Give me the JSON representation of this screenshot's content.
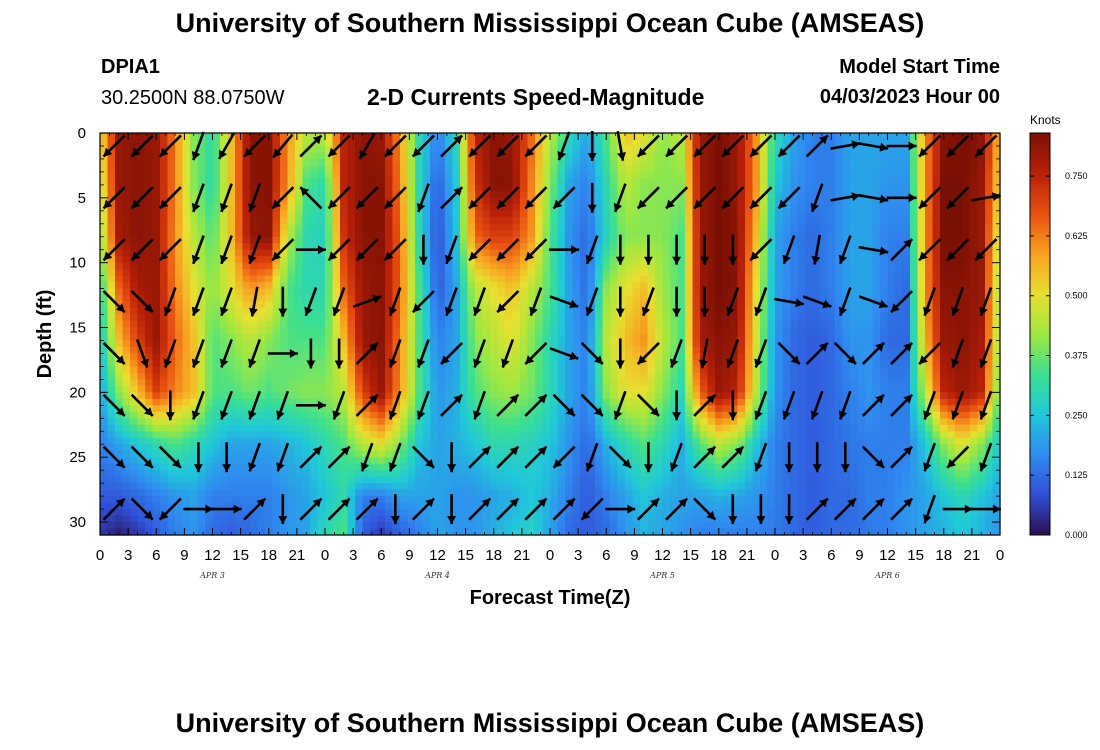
{
  "header": {
    "title_top": "University of Southern Mississippi Ocean Cube (AMSEAS)",
    "title_bottom": "University of Southern Mississippi Ocean Cube (AMSEAS)",
    "station_id": "DPIA1",
    "location": "30.2500N  88.0750W",
    "center_title": "2-D Currents Speed-Magnitude",
    "model_label": "Model Start Time",
    "model_time": "04/03/2023 Hour 00"
  },
  "colors": {
    "colormap": [
      "#2b0f50",
      "#3050d8",
      "#2f8cf0",
      "#20c8d8",
      "#3ce090",
      "#a0e840",
      "#e8e030",
      "#f8a020",
      "#e85010",
      "#b82008",
      "#7a1004"
    ],
    "arrow": "#000000"
  },
  "chart_data": {
    "type": "heatmap",
    "xlabel": "Forecast Time(Z)",
    "ylabel": "Depth (ft)",
    "x_range_hours": [
      0,
      96
    ],
    "x_ticks": [
      "0",
      "3",
      "6",
      "9",
      "12",
      "15",
      "18",
      "21",
      "0",
      "3",
      "6",
      "9",
      "12",
      "15",
      "18",
      "21",
      "0",
      "3",
      "6",
      "9",
      "12",
      "15",
      "18",
      "21",
      "0",
      "3",
      "6",
      "9",
      "12",
      "15",
      "18",
      "21",
      "0"
    ],
    "day_labels": [
      "APR 3",
      "APR 4",
      "APR 5",
      "APR 6"
    ],
    "y_range_ft": [
      0,
      31
    ],
    "y_ticks": [
      "0",
      "5",
      "10",
      "15",
      "20",
      "25",
      "30"
    ],
    "colorbar": {
      "unit": "Knots",
      "min": 0.0,
      "max": 0.84,
      "ticks": [
        "0.750",
        "0.625",
        "0.500",
        "0.375",
        "0.250",
        "0.125",
        "0.000"
      ]
    },
    "depths_ft": [
      0,
      4,
      8,
      12,
      16,
      20,
      24,
      28,
      31
    ],
    "times_hr": [
      0,
      2,
      4,
      6,
      8,
      10,
      12,
      14,
      16,
      18,
      20,
      22,
      24,
      26,
      28,
      30,
      32,
      34,
      36,
      38,
      40,
      42,
      44,
      46,
      48,
      50,
      52,
      54,
      56,
      58,
      60,
      62,
      64,
      66,
      68,
      70,
      72,
      74,
      76,
      78,
      80,
      82,
      84,
      86,
      88,
      90,
      92,
      94,
      96
    ],
    "speed_knots": [
      [
        0.5,
        0.8,
        0.82,
        0.8,
        0.62,
        0.4,
        0.3,
        0.55,
        0.82,
        0.82,
        0.6,
        0.45,
        0.45,
        0.75,
        0.82,
        0.8,
        0.6,
        0.3,
        0.15,
        0.3,
        0.75,
        0.82,
        0.8,
        0.65,
        0.45,
        0.3,
        0.2,
        0.35,
        0.55,
        0.5,
        0.4,
        0.45,
        0.8,
        0.84,
        0.8,
        0.6,
        0.3,
        0.2,
        0.15,
        0.15,
        0.2,
        0.2,
        0.2,
        0.2,
        0.6,
        0.82,
        0.84,
        0.82,
        0.55
      ],
      [
        0.45,
        0.8,
        0.82,
        0.8,
        0.62,
        0.4,
        0.3,
        0.55,
        0.82,
        0.82,
        0.6,
        0.35,
        0.3,
        0.75,
        0.82,
        0.82,
        0.62,
        0.3,
        0.1,
        0.25,
        0.72,
        0.82,
        0.82,
        0.62,
        0.4,
        0.2,
        0.15,
        0.3,
        0.45,
        0.4,
        0.4,
        0.4,
        0.8,
        0.84,
        0.8,
        0.6,
        0.25,
        0.18,
        0.15,
        0.15,
        0.2,
        0.2,
        0.18,
        0.18,
        0.6,
        0.84,
        0.84,
        0.8,
        0.5
      ],
      [
        0.4,
        0.78,
        0.82,
        0.8,
        0.6,
        0.45,
        0.35,
        0.55,
        0.8,
        0.82,
        0.45,
        0.3,
        0.28,
        0.72,
        0.82,
        0.82,
        0.65,
        0.3,
        0.08,
        0.25,
        0.65,
        0.7,
        0.7,
        0.6,
        0.35,
        0.18,
        0.12,
        0.28,
        0.4,
        0.4,
        0.4,
        0.35,
        0.8,
        0.84,
        0.82,
        0.55,
        0.2,
        0.15,
        0.12,
        0.15,
        0.2,
        0.2,
        0.15,
        0.15,
        0.6,
        0.84,
        0.84,
        0.8,
        0.45
      ],
      [
        0.3,
        0.65,
        0.78,
        0.8,
        0.62,
        0.5,
        0.4,
        0.5,
        0.6,
        0.55,
        0.35,
        0.3,
        0.3,
        0.65,
        0.8,
        0.82,
        0.65,
        0.35,
        0.1,
        0.2,
        0.45,
        0.5,
        0.55,
        0.45,
        0.35,
        0.2,
        0.12,
        0.4,
        0.5,
        0.55,
        0.42,
        0.35,
        0.8,
        0.84,
        0.82,
        0.5,
        0.2,
        0.15,
        0.12,
        0.15,
        0.2,
        0.2,
        0.15,
        0.12,
        0.6,
        0.82,
        0.82,
        0.8,
        0.4
      ],
      [
        0.25,
        0.55,
        0.7,
        0.8,
        0.65,
        0.55,
        0.35,
        0.4,
        0.45,
        0.4,
        0.35,
        0.35,
        0.35,
        0.55,
        0.8,
        0.82,
        0.62,
        0.35,
        0.15,
        0.2,
        0.4,
        0.45,
        0.5,
        0.4,
        0.3,
        0.2,
        0.15,
        0.45,
        0.55,
        0.6,
        0.45,
        0.35,
        0.78,
        0.82,
        0.8,
        0.48,
        0.18,
        0.12,
        0.1,
        0.12,
        0.18,
        0.18,
        0.12,
        0.12,
        0.55,
        0.8,
        0.82,
        0.78,
        0.4
      ],
      [
        0.2,
        0.4,
        0.55,
        0.7,
        0.62,
        0.55,
        0.35,
        0.35,
        0.38,
        0.35,
        0.38,
        0.4,
        0.4,
        0.45,
        0.7,
        0.8,
        0.6,
        0.35,
        0.18,
        0.22,
        0.35,
        0.4,
        0.42,
        0.38,
        0.3,
        0.2,
        0.15,
        0.4,
        0.5,
        0.5,
        0.4,
        0.3,
        0.65,
        0.8,
        0.75,
        0.45,
        0.18,
        0.12,
        0.1,
        0.12,
        0.15,
        0.18,
        0.15,
        0.15,
        0.45,
        0.75,
        0.8,
        0.75,
        0.35
      ],
      [
        0.15,
        0.2,
        0.25,
        0.3,
        0.35,
        0.3,
        0.25,
        0.2,
        0.2,
        0.2,
        0.22,
        0.25,
        0.3,
        0.35,
        0.45,
        0.5,
        0.4,
        0.25,
        0.2,
        0.22,
        0.25,
        0.3,
        0.3,
        0.28,
        0.25,
        0.18,
        0.12,
        0.22,
        0.3,
        0.35,
        0.3,
        0.22,
        0.35,
        0.45,
        0.4,
        0.25,
        0.15,
        0.12,
        0.1,
        0.12,
        0.14,
        0.15,
        0.15,
        0.15,
        0.25,
        0.4,
        0.5,
        0.4,
        0.25
      ],
      [
        0.1,
        0.1,
        0.12,
        0.15,
        0.18,
        0.2,
        0.15,
        0.15,
        0.15,
        0.15,
        0.18,
        0.2,
        0.25,
        0.3,
        0.15,
        0.15,
        0.2,
        0.2,
        0.2,
        0.18,
        0.18,
        0.2,
        0.22,
        0.25,
        0.22,
        0.15,
        0.1,
        0.15,
        0.2,
        0.25,
        0.22,
        0.2,
        0.2,
        0.22,
        0.2,
        0.18,
        0.15,
        0.12,
        0.1,
        0.12,
        0.12,
        0.15,
        0.15,
        0.18,
        0.2,
        0.25,
        0.3,
        0.25,
        0.2
      ],
      [
        0.05,
        0.02,
        0.05,
        0.1,
        0.15,
        0.18,
        0.12,
        0.1,
        0.12,
        0.15,
        0.18,
        0.2,
        0.3,
        0.35,
        0.1,
        0.05,
        0.1,
        0.15,
        0.2,
        0.18,
        0.18,
        0.22,
        0.25,
        0.28,
        0.2,
        0.12,
        0.1,
        0.12,
        0.18,
        0.22,
        0.2,
        0.18,
        0.15,
        0.15,
        0.15,
        0.15,
        0.14,
        0.12,
        0.1,
        0.12,
        0.12,
        0.14,
        0.15,
        0.18,
        0.2,
        0.22,
        0.25,
        0.22,
        0.18
      ]
    ],
    "vectors": {
      "times_hr": [
        1.5,
        4.5,
        7.5,
        10.5,
        13.5,
        16.5,
        19.5,
        22.5,
        25.5,
        28.5,
        31.5,
        34.5,
        37.5,
        40.5,
        43.5,
        46.5,
        49.5,
        52.5,
        55.5,
        58.5,
        61.5,
        64.5,
        67.5,
        70.5,
        73.5,
        76.5,
        79.5,
        82.5,
        85.5,
        88.5,
        91.5,
        94.5
      ],
      "depths_ft": [
        1,
        5,
        9,
        13,
        17,
        21,
        25,
        29
      ],
      "direction_deg": [
        [
          225,
          225,
          225,
          200,
          210,
          225,
          220,
          45,
          225,
          210,
          225,
          225,
          45,
          225,
          225,
          225,
          200,
          180,
          170,
          225,
          225,
          225,
          225,
          225,
          225,
          45,
          80,
          100,
          90,
          225,
          225,
          225
        ],
        [
          225,
          225,
          225,
          200,
          200,
          200,
          225,
          315,
          225,
          225,
          225,
          200,
          45,
          225,
          225,
          225,
          225,
          180,
          200,
          225,
          225,
          225,
          225,
          225,
          225,
          200,
          80,
          100,
          90,
          225,
          225,
          80
        ],
        [
          225,
          225,
          225,
          200,
          200,
          200,
          225,
          90,
          225,
          225,
          225,
          180,
          200,
          225,
          225,
          225,
          90,
          200,
          180,
          180,
          180,
          180,
          180,
          225,
          200,
          190,
          200,
          100,
          45,
          225,
          225,
          225
        ],
        [
          135,
          135,
          200,
          200,
          200,
          190,
          180,
          200,
          200,
          70,
          200,
          225,
          200,
          200,
          225,
          200,
          110,
          200,
          180,
          200,
          180,
          180,
          200,
          200,
          100,
          110,
          200,
          110,
          225,
          200,
          200,
          200
        ],
        [
          135,
          160,
          200,
          200,
          200,
          200,
          90,
          180,
          180,
          45,
          200,
          200,
          225,
          200,
          200,
          225,
          110,
          135,
          180,
          225,
          200,
          190,
          200,
          200,
          135,
          45,
          135,
          45,
          45,
          225,
          200,
          200
        ],
        [
          135,
          135,
          180,
          200,
          200,
          200,
          200,
          90,
          200,
          45,
          200,
          200,
          45,
          200,
          45,
          45,
          135,
          135,
          200,
          135,
          180,
          45,
          180,
          200,
          200,
          200,
          200,
          45,
          45,
          200,
          200,
          200
        ],
        [
          135,
          135,
          135,
          180,
          180,
          200,
          200,
          45,
          45,
          200,
          200,
          135,
          180,
          45,
          45,
          45,
          225,
          200,
          135,
          180,
          200,
          45,
          45,
          200,
          180,
          180,
          180,
          135,
          45,
          200,
          225,
          200
        ],
        [
          45,
          135,
          225,
          90,
          90,
          45,
          180,
          45,
          45,
          45,
          180,
          45,
          180,
          45,
          45,
          45,
          45,
          225,
          90,
          45,
          45,
          135,
          180,
          180,
          180,
          45,
          45,
          45,
          45,
          200,
          90,
          90
        ]
      ]
    }
  }
}
